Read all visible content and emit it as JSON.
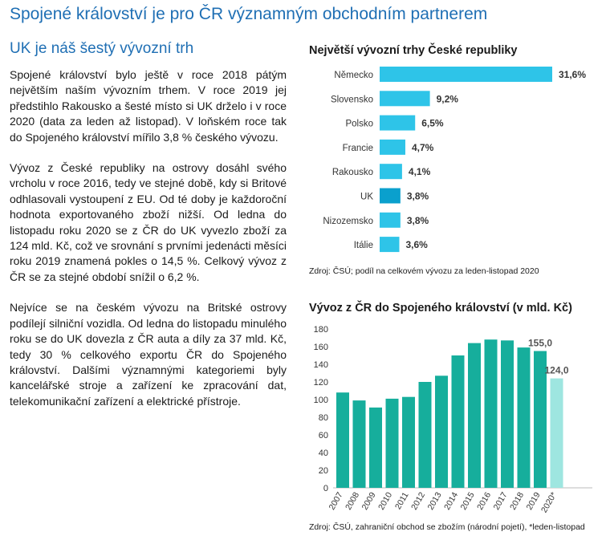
{
  "header": {
    "title": "Spojené království je pro ČR významným obchodním partnerem",
    "subtitle": "UK je náš šestý vývozní trh"
  },
  "article": {
    "paragraphs": [
      "Spojené království bylo ještě v roce 2018 pátým největším naším vývozním trhem. V roce 2019 jej předstihlo Rakousko a šesté místo si UK drželo i v roce 2020 (data za leden až listopad). V loňském roce tak do Spojeného království mířilo 3,8 % českého vývozu.",
      "Vývoz z České republiky na ostrovy dosáhl svého vrcholu v roce 2016, tedy ve stejné době, kdy si Britové odhlasovali vystoupení z EU. Od té doby je každoroční hodnota exportovaného zboží nižší. Od ledna do listopadu roku 2020 se z ČR do UK vyvezlo zboží za 124 mld. Kč, což ve srovnání s prvními jedenácti měsíci roku 2019 znamená pokles o 14,5 %. Celkový vývoz z ČR se za stejné období snížil o 6,2 %.",
      "Nejvíce se na českém vývozu na Britské ostrovy podílejí silniční vozidla. Od ledna do listopadu minulého roku se do UK dovezla z ČR auta a díly za 37 mld. Kč, tedy 30 % celkového exportu ČR do Spojeného království. Dalšími významnými kategoriemi byly kancelářské stroje a zařízení ke zpracování dat, telekomunikační zařízení a elektrické přístroje."
    ]
  },
  "colors": {
    "title": "#1f6fb4",
    "bar_light": "#2ec4e8",
    "bar_highlight": "#0aa0cd",
    "bar_teal": "#16ae9c",
    "bar_estimate": "#9ee6e0"
  },
  "chart_data": [
    {
      "type": "bar",
      "orientation": "horizontal",
      "title": "Největší vývozní trhy České republiky",
      "categories": [
        "Německo",
        "Slovensko",
        "Polsko",
        "Francie",
        "Rakousko",
        "UK",
        "Nizozemsko",
        "Itálie"
      ],
      "values": [
        31.6,
        9.2,
        6.5,
        4.7,
        4.1,
        3.8,
        3.8,
        3.6
      ],
      "value_labels": [
        "31,6%",
        "9,2%",
        "6,5%",
        "4,7%",
        "4,1%",
        "3,8%",
        "3,8%",
        "3,6%"
      ],
      "highlight": "UK",
      "source": "Zdroj: ČSÚ; podíl na celkovém vývozu za leden-listopad 2020"
    },
    {
      "type": "bar",
      "title": "Vývoz z ČR do Spojeného království (v mld. Kč)",
      "categories": [
        "2007",
        "2008",
        "2009",
        "2010",
        "2011",
        "2012",
        "2013",
        "2014",
        "2015",
        "2016",
        "2017",
        "2018",
        "2019",
        "2020*"
      ],
      "values": [
        108,
        99,
        91,
        101,
        103,
        120,
        127,
        150,
        164,
        168,
        167,
        159,
        155,
        124
      ],
      "data_labels": {
        "2019": "155,0",
        "2020*": "124,0"
      },
      "ylim": [
        0,
        180
      ],
      "yticks": [
        0,
        20,
        40,
        60,
        80,
        100,
        120,
        140,
        160,
        180
      ],
      "grid": false,
      "source": "Zdroj: ČSÚ, zahraniční obchod se zbožím (národní pojetí), *leden-listopad"
    }
  ]
}
